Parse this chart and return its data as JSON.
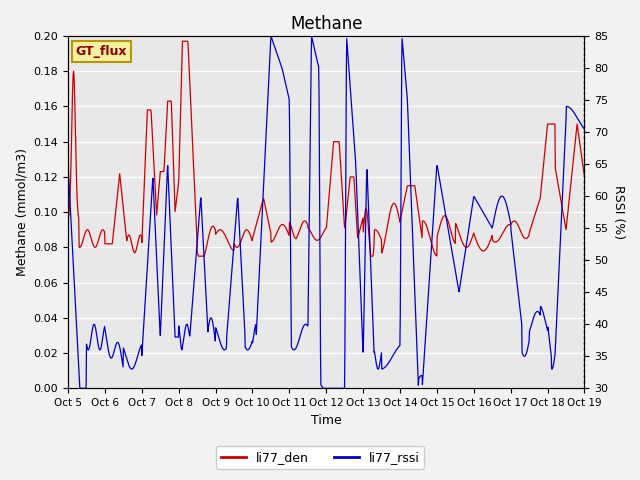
{
  "title": "Methane",
  "ylabel_left": "Methane (mmol/m3)",
  "ylabel_right": "RSSI (%)",
  "xlabel": "Time",
  "ylim_left": [
    0.0,
    0.2
  ],
  "ylim_right": [
    30,
    85
  ],
  "background_color": "#e8e8e8",
  "figure_bg": "#f2f2f2",
  "gt_flux_label": "GT_flux",
  "legend": [
    "li77_den",
    "li77_rssi"
  ],
  "line_colors": [
    "#cc0000",
    "#0000cc"
  ],
  "x_tick_labels": [
    "Oct 5",
    "Oct 6",
    "Oct 7",
    "Oct 8",
    "Oct 9",
    "Oct 10",
    "Oct 11",
    "Oct 12",
    "Oct 13",
    "Oct 14",
    "Oct 15",
    "Oct 16",
    "Oct 17",
    "Oct 18",
    "Oct 19"
  ],
  "rssi_yticks": [
    30,
    35,
    40,
    45,
    50,
    55,
    60,
    65,
    70,
    75,
    80,
    85
  ],
  "left_yticks": [
    0.0,
    0.02,
    0.04,
    0.06,
    0.08,
    0.1,
    0.12,
    0.14,
    0.16,
    0.18,
    0.2
  ]
}
